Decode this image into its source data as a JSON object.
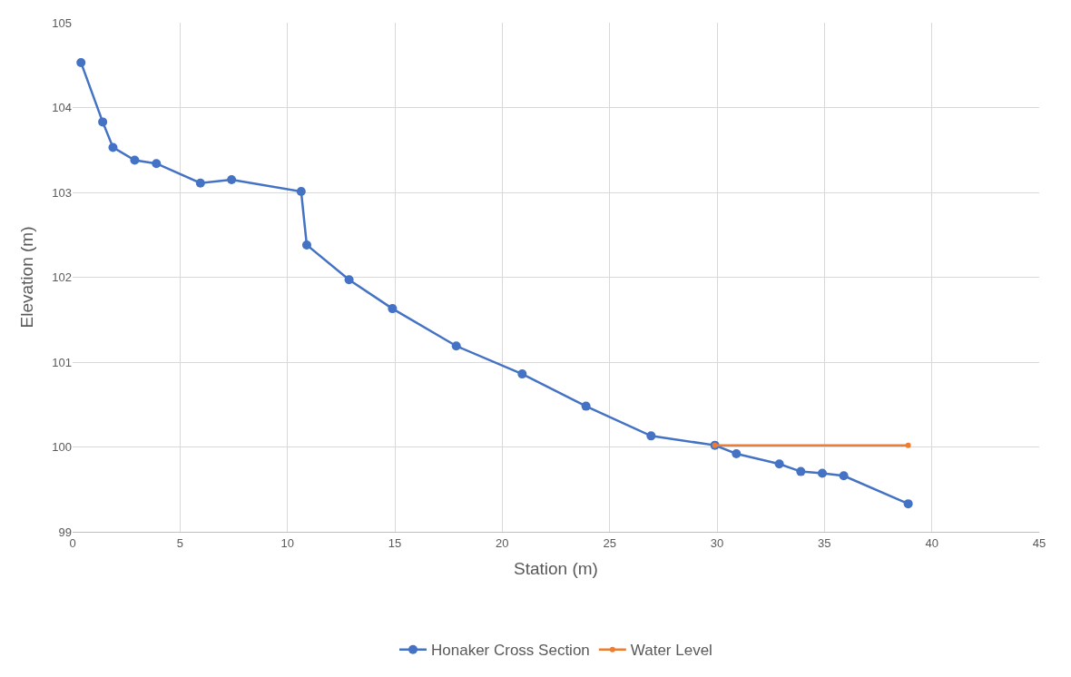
{
  "chart_data": {
    "type": "line",
    "xlabel": "Station (m)",
    "ylabel": "Elevation (m)",
    "xlim": [
      0,
      45
    ],
    "xticks": [
      0,
      5,
      10,
      15,
      20,
      25,
      30,
      35,
      40,
      45
    ],
    "ylim": [
      99,
      105
    ],
    "yticks": [
      99,
      100,
      101,
      102,
      103,
      104,
      105
    ],
    "grid": true,
    "legend": "bottom",
    "marker": "circle",
    "line_style": "solid",
    "series": [
      {
        "name": "Honaker Cross Section",
        "color": "#4472c4",
        "x": [
          0.39,
          1.4,
          1.88,
          2.89,
          3.9,
          5.95,
          7.4,
          10.64,
          10.9,
          12.87,
          14.89,
          17.86,
          20.93,
          23.9,
          26.93,
          29.9,
          30.9,
          32.9,
          33.9,
          34.9,
          35.9,
          38.9
        ],
        "values": [
          104.53,
          103.83,
          103.53,
          103.38,
          103.34,
          103.11,
          103.15,
          103.01,
          102.38,
          101.97,
          101.63,
          101.19,
          100.86,
          100.48,
          100.13,
          100.02,
          99.92,
          99.8,
          99.71,
          99.69,
          99.66,
          99.33
        ]
      },
      {
        "name": "Water Level",
        "color": "#ed7d31",
        "x": [
          29.9,
          38.9
        ],
        "values": [
          100.02,
          100.02
        ]
      }
    ]
  }
}
